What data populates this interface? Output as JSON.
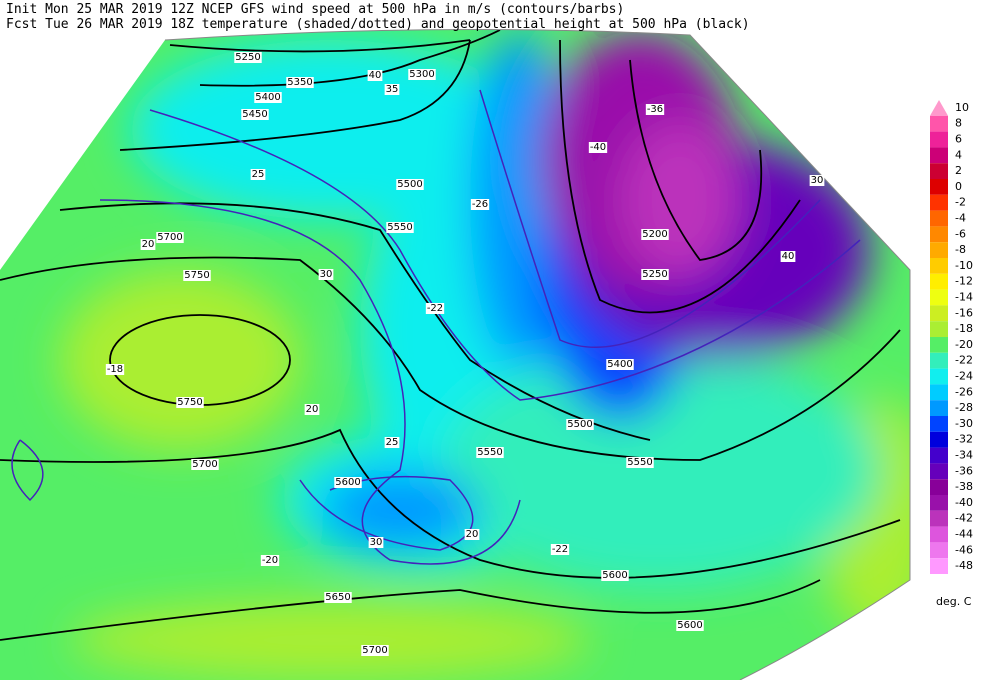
{
  "header": {
    "line1": "Init   Mon 25 MAR 2019 12Z  NCEP GFS wind speed at 500 hPa in m/s (contours/barbs)",
    "line2": "Fcst Tue 26 MAR 2019 18Z  temperature (shaded/dotted) and geopotential height at 500 hPa (black)"
  },
  "colorbar": {
    "unit": "deg. C",
    "levels": [
      {
        "label": "10",
        "color": "#ff99cc"
      },
      {
        "label": "8",
        "color": "#ff55aa"
      },
      {
        "label": "6",
        "color": "#ee2299"
      },
      {
        "label": "4",
        "color": "#cc0077"
      },
      {
        "label": "2",
        "color": "#cc0033"
      },
      {
        "label": "0",
        "color": "#dd0000"
      },
      {
        "label": "-2",
        "color": "#ff3300"
      },
      {
        "label": "-4",
        "color": "#ff6600"
      },
      {
        "label": "-6",
        "color": "#ff8800"
      },
      {
        "label": "-8",
        "color": "#ffaa00"
      },
      {
        "label": "-10",
        "color": "#ffcc00"
      },
      {
        "label": "-12",
        "color": "#ffee00"
      },
      {
        "label": "-14",
        "color": "#eeff11"
      },
      {
        "label": "-16",
        "color": "#ccee22"
      },
      {
        "label": "-18",
        "color": "#aaee33"
      },
      {
        "label": "-20",
        "color": "#55ee66"
      },
      {
        "label": "-22",
        "color": "#33eebb"
      },
      {
        "label": "-24",
        "color": "#11eeee"
      },
      {
        "label": "-26",
        "color": "#00ccff"
      },
      {
        "label": "-28",
        "color": "#0099ff"
      },
      {
        "label": "-30",
        "color": "#0044ff"
      },
      {
        "label": "-32",
        "color": "#0000dd"
      },
      {
        "label": "-34",
        "color": "#4400cc"
      },
      {
        "label": "-36",
        "color": "#6600bb"
      },
      {
        "label": "-38",
        "color": "#880099"
      },
      {
        "label": "-40",
        "color": "#9911aa"
      },
      {
        "label": "-42",
        "color": "#bb33bb"
      },
      {
        "label": "-44",
        "color": "#dd55dd"
      },
      {
        "label": "-46",
        "color": "#ee77ee"
      },
      {
        "label": "-48",
        "color": "#ff99ff"
      }
    ]
  },
  "map_labels": [
    "5250",
    "5300",
    "5350",
    "5400",
    "5450",
    "5500",
    "5550",
    "5700",
    "5750",
    "5750",
    "5700",
    "5200",
    "5250",
    "5400",
    "5500",
    "5550",
    "5600",
    "5600",
    "5650",
    "5700",
    "5550",
    "5600",
    "25",
    "20",
    "30",
    "35",
    "40",
    "40",
    "30",
    "25",
    "20",
    "20",
    "30",
    "-18",
    "-22",
    "-26",
    "-40",
    "-36",
    "-20",
    "-22"
  ]
}
